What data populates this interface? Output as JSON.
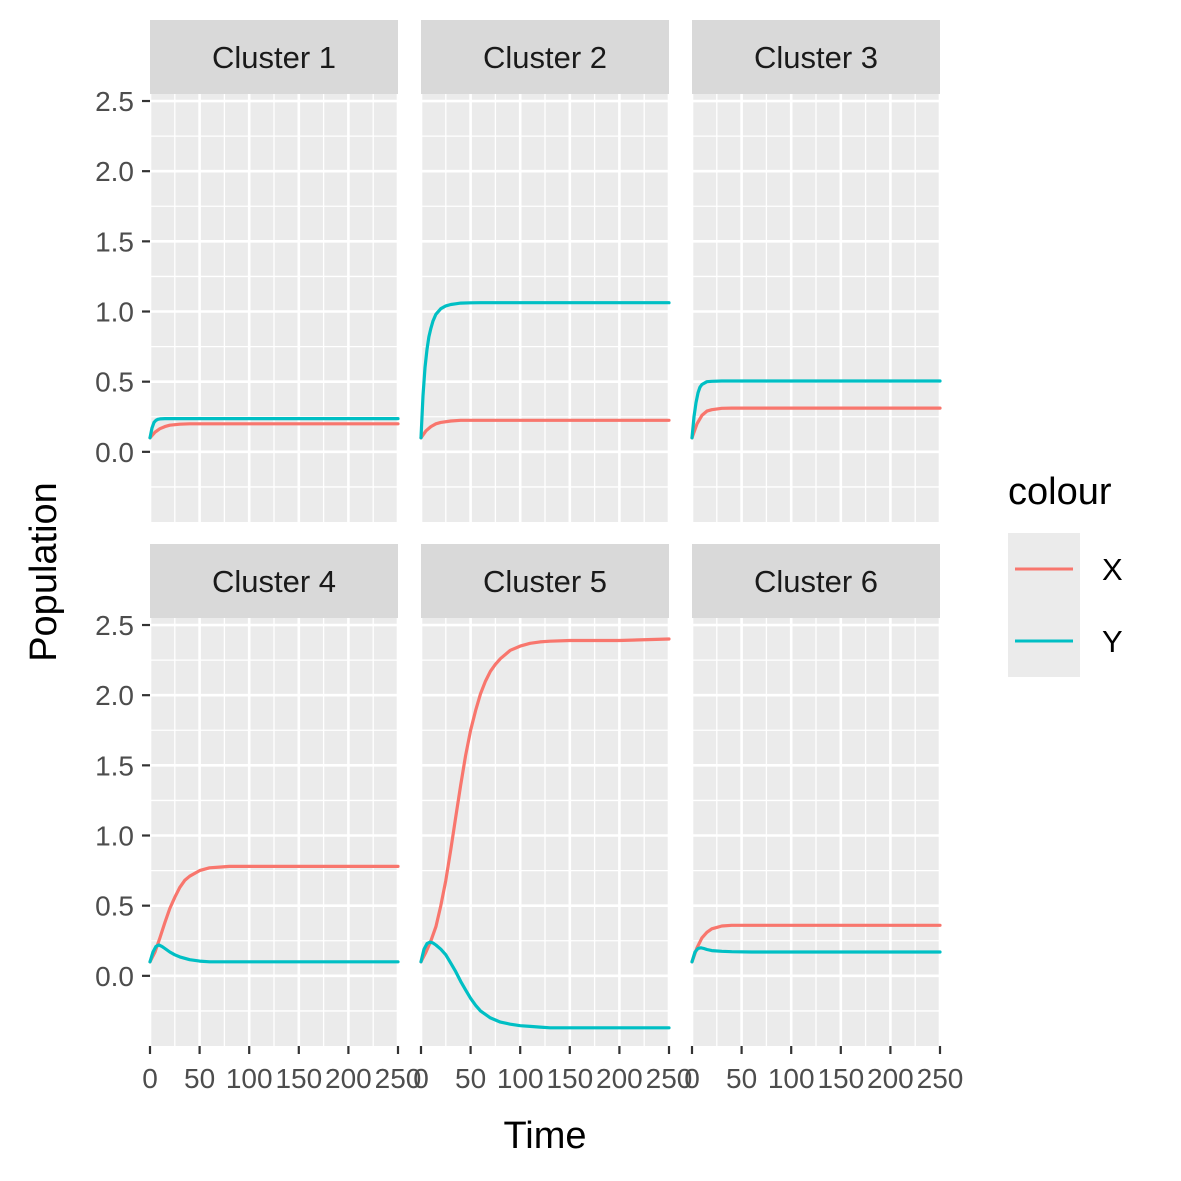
{
  "chart_data": {
    "type": "line",
    "xlabel": "Time",
    "ylabel": "Population",
    "xlim": [
      0,
      250
    ],
    "ylim": [
      -0.5,
      2.55
    ],
    "x_ticks": [
      0,
      50,
      100,
      150,
      200,
      250
    ],
    "x_tick_labels": [
      "0",
      "50",
      "100",
      "150",
      "200",
      "250"
    ],
    "y_ticks": [
      0.0,
      0.5,
      1.0,
      1.5,
      2.0,
      2.5
    ],
    "y_tick_labels": [
      "0.0",
      "0.5",
      "1.0",
      "1.5",
      "2.0",
      "2.5"
    ],
    "grid": true,
    "legend": {
      "title": "colour",
      "position": "right",
      "entries": [
        {
          "name": "X",
          "color": "#F8766D"
        },
        {
          "name": "Y",
          "color": "#00BFC4"
        }
      ]
    },
    "panels": [
      {
        "title": "Cluster 1",
        "series": [
          {
            "name": "X",
            "x": [
              0,
              5,
              10,
              15,
              20,
              30,
              40,
              60,
              100,
              150,
              200,
              250
            ],
            "values": [
              0.1,
              0.14,
              0.165,
              0.18,
              0.19,
              0.197,
              0.2,
              0.2,
              0.2,
              0.2,
              0.2,
              0.2
            ]
          },
          {
            "name": "Y",
            "x": [
              0,
              2,
              4,
              6,
              8,
              10,
              15,
              20,
              40,
              100,
              150,
              200,
              250
            ],
            "values": [
              0.1,
              0.17,
              0.21,
              0.225,
              0.232,
              0.235,
              0.237,
              0.237,
              0.237,
              0.237,
              0.237,
              0.237,
              0.237
            ]
          }
        ]
      },
      {
        "title": "Cluster 2",
        "series": [
          {
            "name": "X",
            "x": [
              0,
              5,
              10,
              15,
              20,
              30,
              40,
              60,
              100,
              150,
              200,
              250
            ],
            "values": [
              0.1,
              0.15,
              0.18,
              0.2,
              0.21,
              0.22,
              0.225,
              0.225,
              0.225,
              0.225,
              0.225,
              0.225
            ]
          },
          {
            "name": "Y",
            "x": [
              0,
              2,
              4,
              6,
              8,
              10,
              12,
              15,
              20,
              25,
              30,
              35,
              40,
              50,
              60,
              100,
              150,
              200,
              250
            ],
            "values": [
              0.1,
              0.4,
              0.6,
              0.73,
              0.82,
              0.88,
              0.93,
              0.98,
              1.02,
              1.04,
              1.05,
              1.055,
              1.06,
              1.062,
              1.063,
              1.063,
              1.063,
              1.063,
              1.063
            ]
          }
        ]
      },
      {
        "title": "Cluster 3",
        "series": [
          {
            "name": "X",
            "x": [
              0,
              5,
              10,
              15,
              20,
              30,
              40,
              60,
              100,
              150,
              200,
              250
            ],
            "values": [
              0.1,
              0.2,
              0.26,
              0.29,
              0.3,
              0.31,
              0.312,
              0.312,
              0.312,
              0.312,
              0.312,
              0.312
            ]
          },
          {
            "name": "Y",
            "x": [
              0,
              2,
              4,
              6,
              8,
              10,
              15,
              20,
              30,
              40,
              100,
              150,
              200,
              250
            ],
            "values": [
              0.1,
              0.25,
              0.35,
              0.42,
              0.46,
              0.48,
              0.5,
              0.503,
              0.505,
              0.505,
              0.505,
              0.505,
              0.505,
              0.505
            ]
          }
        ]
      },
      {
        "title": "Cluster 4",
        "series": [
          {
            "name": "X",
            "x": [
              0,
              5,
              10,
              15,
              20,
              25,
              30,
              35,
              40,
              50,
              60,
              70,
              80,
              100,
              150,
              200,
              250
            ],
            "values": [
              0.1,
              0.17,
              0.27,
              0.38,
              0.48,
              0.56,
              0.63,
              0.68,
              0.71,
              0.75,
              0.77,
              0.775,
              0.78,
              0.78,
              0.78,
              0.78,
              0.78
            ]
          },
          {
            "name": "Y",
            "x": [
              0,
              3,
              6,
              9,
              12,
              15,
              20,
              25,
              30,
              40,
              50,
              60,
              70,
              80,
              100,
              150,
              200,
              250
            ],
            "values": [
              0.1,
              0.17,
              0.21,
              0.22,
              0.21,
              0.195,
              0.17,
              0.15,
              0.135,
              0.115,
              0.105,
              0.1,
              0.1,
              0.1,
              0.1,
              0.1,
              0.1,
              0.1
            ]
          }
        ]
      },
      {
        "title": "Cluster 5",
        "series": [
          {
            "name": "X",
            "x": [
              0,
              5,
              10,
              15,
              20,
              25,
              30,
              35,
              40,
              45,
              50,
              55,
              60,
              65,
              70,
              75,
              80,
              90,
              100,
              110,
              120,
              130,
              150,
              200,
              250
            ],
            "values": [
              0.1,
              0.17,
              0.25,
              0.35,
              0.5,
              0.68,
              0.9,
              1.13,
              1.36,
              1.57,
              1.75,
              1.89,
              2.01,
              2.1,
              2.17,
              2.22,
              2.26,
              2.32,
              2.35,
              2.37,
              2.38,
              2.385,
              2.39,
              2.39,
              2.4
            ]
          },
          {
            "name": "Y",
            "x": [
              0,
              3,
              6,
              9,
              12,
              15,
              20,
              25,
              30,
              35,
              40,
              45,
              50,
              55,
              60,
              70,
              80,
              90,
              100,
              110,
              120,
              130,
              150,
              200,
              250
            ],
            "values": [
              0.1,
              0.19,
              0.23,
              0.24,
              0.235,
              0.22,
              0.19,
              0.15,
              0.09,
              0.03,
              -0.04,
              -0.1,
              -0.16,
              -0.21,
              -0.25,
              -0.3,
              -0.33,
              -0.345,
              -0.355,
              -0.36,
              -0.365,
              -0.37,
              -0.37,
              -0.37,
              -0.37
            ]
          }
        ]
      },
      {
        "title": "Cluster 6",
        "series": [
          {
            "name": "X",
            "x": [
              0,
              5,
              10,
              15,
              20,
              25,
              30,
              40,
              50,
              100,
              150,
              200,
              250
            ],
            "values": [
              0.1,
              0.2,
              0.27,
              0.31,
              0.335,
              0.345,
              0.355,
              0.36,
              0.36,
              0.36,
              0.36,
              0.36,
              0.36
            ]
          },
          {
            "name": "Y",
            "x": [
              0,
              3,
              6,
              9,
              12,
              15,
              20,
              30,
              40,
              60,
              100,
              150,
              200,
              250
            ],
            "values": [
              0.1,
              0.17,
              0.195,
              0.2,
              0.195,
              0.188,
              0.18,
              0.175,
              0.172,
              0.17,
              0.17,
              0.17,
              0.17,
              0.17
            ]
          }
        ]
      }
    ]
  }
}
